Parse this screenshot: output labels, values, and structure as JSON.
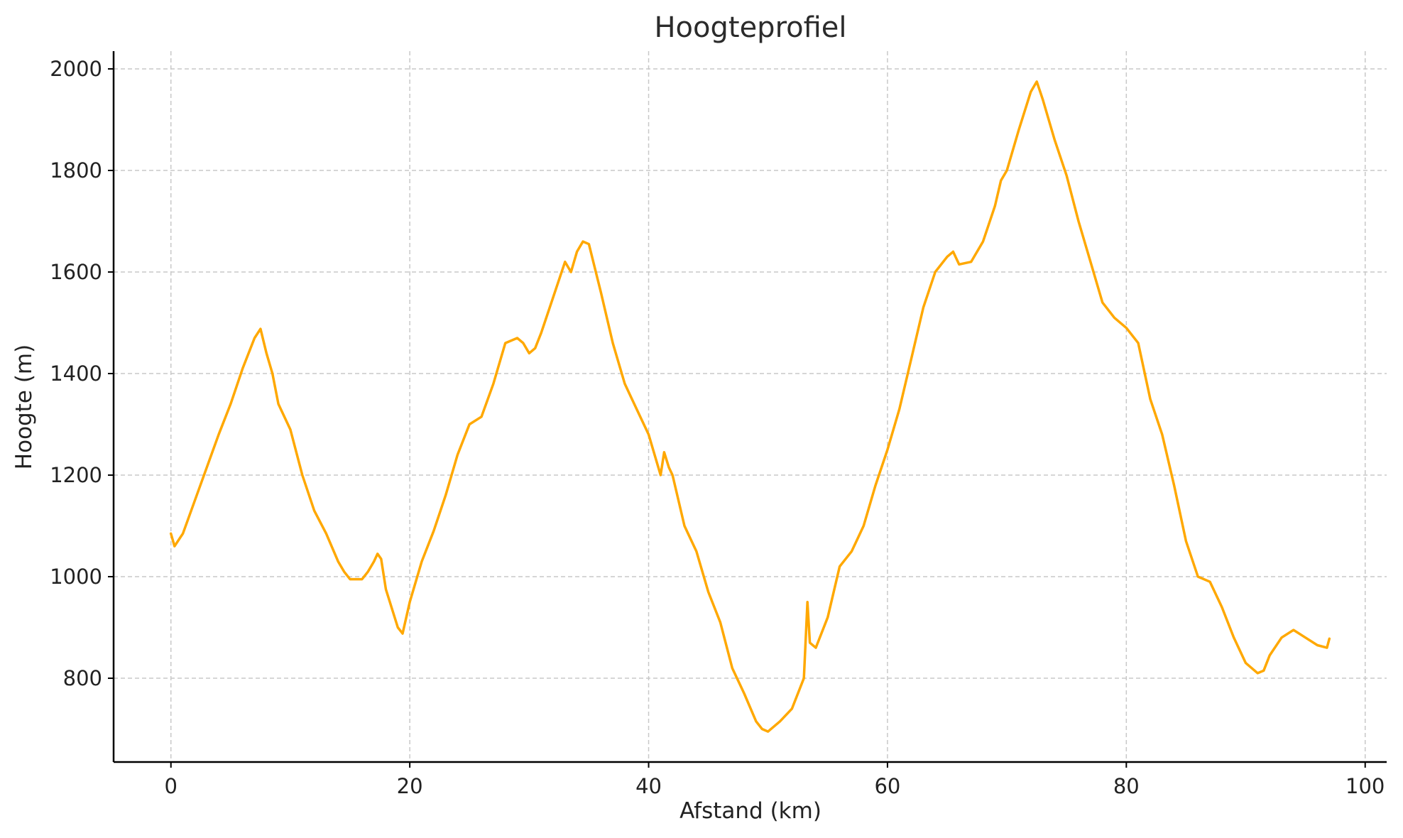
{
  "chart_data": {
    "type": "line",
    "title": "Hoogteprofiel",
    "xlabel": "Afstand (km)",
    "ylabel": "Hoogte (m)",
    "xlim": [
      -4.8,
      101.8
    ],
    "ylim": [
      635,
      2035
    ],
    "xticks": [
      0,
      20,
      40,
      60,
      80,
      100
    ],
    "yticks": [
      800,
      1000,
      1200,
      1400,
      1600,
      1800,
      2000
    ],
    "grid": true,
    "series": [
      {
        "color": "#FFA800",
        "x": [
          0,
          0.3,
          1,
          2,
          3,
          4,
          5,
          6,
          7,
          7.5,
          8,
          8.5,
          9,
          10,
          11,
          12,
          13,
          14,
          14.5,
          15,
          16,
          16.5,
          17,
          17.3,
          17.6,
          18,
          19,
          19.4,
          20,
          21,
          22,
          23,
          24,
          25,
          26,
          27,
          28,
          29,
          29.5,
          30,
          30.5,
          31,
          32,
          33,
          33.5,
          34,
          34.5,
          35,
          36,
          37,
          38,
          39,
          40,
          41,
          41.3,
          41.7,
          42,
          43,
          44,
          45,
          46,
          47,
          48,
          49,
          49.5,
          50,
          51,
          52,
          53,
          53.3,
          53.5,
          54,
          55,
          56,
          57,
          58,
          59,
          60,
          61,
          62,
          63,
          64,
          65,
          65.5,
          66,
          67,
          68,
          69,
          69.5,
          70,
          71,
          72,
          72.5,
          73,
          74,
          75,
          76,
          77,
          78,
          79,
          80,
          81,
          82,
          83,
          84,
          85,
          86,
          87,
          88,
          89,
          90,
          91,
          91.5,
          92,
          93,
          94,
          95,
          96,
          96.8,
          97
        ],
        "y": [
          1085,
          1060,
          1085,
          1150,
          1215,
          1280,
          1340,
          1410,
          1470,
          1488,
          1440,
          1400,
          1340,
          1290,
          1200,
          1130,
          1085,
          1030,
          1010,
          995,
          995,
          1010,
          1030,
          1045,
          1035,
          975,
          900,
          888,
          950,
          1030,
          1090,
          1160,
          1240,
          1300,
          1315,
          1380,
          1460,
          1470,
          1460,
          1440,
          1450,
          1480,
          1550,
          1620,
          1600,
          1640,
          1660,
          1655,
          1560,
          1460,
          1380,
          1330,
          1280,
          1200,
          1245,
          1215,
          1200,
          1100,
          1050,
          970,
          910,
          820,
          770,
          715,
          700,
          695,
          715,
          740,
          800,
          950,
          870,
          860,
          920,
          1020,
          1050,
          1100,
          1180,
          1250,
          1330,
          1430,
          1530,
          1600,
          1630,
          1640,
          1615,
          1620,
          1660,
          1730,
          1780,
          1800,
          1880,
          1955,
          1975,
          1940,
          1860,
          1790,
          1700,
          1620,
          1540,
          1510,
          1490,
          1460,
          1350,
          1280,
          1180,
          1070,
          1000,
          990,
          940,
          880,
          830,
          810,
          815,
          845,
          880,
          895,
          880,
          865,
          860,
          878
        ]
      }
    ]
  }
}
